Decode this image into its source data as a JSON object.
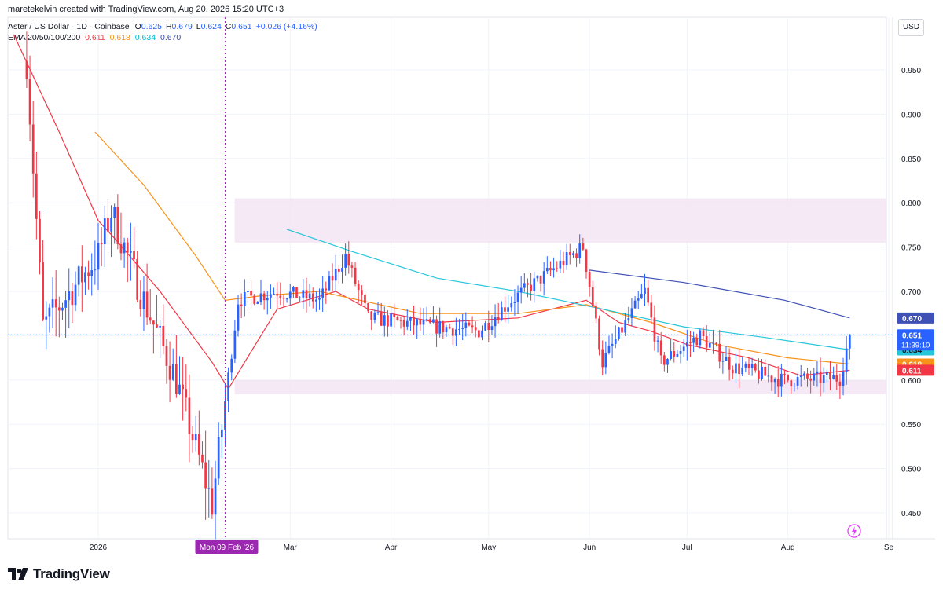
{
  "header": {
    "credit": "maretekelvin created with TradingView.com, Aug 20, 2026 15:20 UTC+3",
    "symbol": "Aster / US Dollar · 1D · Coinbase",
    "open_label": "O",
    "open": "0.625",
    "high_label": "H",
    "high": "0.679",
    "low_label": "L",
    "low": "0.624",
    "close_label": "C",
    "close": "0.651",
    "change": "+0.026 (+4.16%)",
    "ema_label": "EMA 20/50/100/200",
    "ema20": "0.611",
    "ema50": "0.618",
    "ema100": "0.634",
    "ema200": "0.670"
  },
  "axis": {
    "currency": "USD"
  },
  "footer": {
    "brand": "TradingView"
  },
  "crosshair_label": "Mon 09 Feb '26",
  "countdown": "11:39:10",
  "colors": {
    "up": "#2962ff",
    "down": "#f23645",
    "ema20": "#f23645",
    "ema50": "#f7931a",
    "ema100": "#26c6da",
    "ema200": "#3f51b5",
    "zone": "#f3e5f5",
    "crosshair": "#9c27b0"
  },
  "chart_data": {
    "type": "candlestick",
    "x_unit": "date",
    "y_range": [
      0.42,
      0.99
    ],
    "y_ticks": [
      "0.950",
      "0.900",
      "0.850",
      "0.800",
      "0.750",
      "0.700",
      "0.650",
      "0.600",
      "0.550",
      "0.500",
      "0.450"
    ],
    "x_ticks": [
      {
        "label": "2026",
        "date": "2026-01-01"
      },
      {
        "label": "Mar",
        "date": "2026-03-01"
      },
      {
        "label": "Apr",
        "date": "2026-04-01"
      },
      {
        "label": "May",
        "date": "2026-05-01"
      },
      {
        "label": "Jun",
        "date": "2026-06-01"
      },
      {
        "label": "Jul",
        "date": "2026-07-01"
      },
      {
        "label": "Aug",
        "date": "2026-08-01"
      },
      {
        "label": "Se",
        "date": "2026-09-01"
      }
    ],
    "zones": [
      {
        "name": "resistance",
        "from_date": "2026-02-10",
        "to_date": "2026-09-01",
        "low": 0.755,
        "high": 0.805
      },
      {
        "name": "support",
        "from_date": "2026-02-10",
        "to_date": "2026-09-01",
        "low": 0.584,
        "high": 0.6
      }
    ],
    "crosshair_date": "2026-02-09",
    "last_price": 0.651,
    "ema_levels": [
      {
        "name": "EMA 200",
        "value": 0.67,
        "color": "#3f51b5"
      },
      {
        "name": "EMA 100",
        "value": 0.634,
        "color": "#26c6da"
      },
      {
        "name": "EMA 50",
        "value": 0.618,
        "color": "#f7931a"
      },
      {
        "name": "EMA 20",
        "value": 0.611,
        "color": "#f23645"
      }
    ],
    "key_points": [
      {
        "date": "2025-12-10",
        "close": 0.96
      },
      {
        "date": "2025-12-15",
        "close": 0.66
      },
      {
        "date": "2026-01-01",
        "close": 0.74
      },
      {
        "date": "2026-01-05",
        "close": 0.79
      },
      {
        "date": "2026-01-15",
        "close": 0.69
      },
      {
        "date": "2026-01-25",
        "close": 0.6
      },
      {
        "date": "2026-02-05",
        "close": 0.46
      },
      {
        "date": "2026-02-13",
        "close": 0.69
      },
      {
        "date": "2026-02-25",
        "close": 0.7
      },
      {
        "date": "2026-03-10",
        "close": 0.69
      },
      {
        "date": "2026-03-18",
        "close": 0.74
      },
      {
        "date": "2026-03-25",
        "close": 0.67
      },
      {
        "date": "2026-04-15",
        "close": 0.66
      },
      {
        "date": "2026-04-28",
        "close": 0.655
      },
      {
        "date": "2026-05-08",
        "close": 0.69
      },
      {
        "date": "2026-05-30",
        "close": 0.75
      },
      {
        "date": "2026-06-05",
        "close": 0.62
      },
      {
        "date": "2026-06-18",
        "close": 0.7
      },
      {
        "date": "2026-06-23",
        "close": 0.62
      },
      {
        "date": "2026-07-05",
        "close": 0.65
      },
      {
        "date": "2026-07-15",
        "close": 0.615
      },
      {
        "date": "2026-07-30",
        "close": 0.6
      },
      {
        "date": "2026-08-17",
        "close": 0.602
      },
      {
        "date": "2026-08-20",
        "close": 0.651
      }
    ],
    "ema_lines": [
      {
        "name": "EMA 20",
        "color": "#f23645",
        "points": [
          [
            "2025-12-06",
            0.99
          ],
          [
            "2025-12-20",
            0.88
          ],
          [
            "2026-01-01",
            0.78
          ],
          [
            "2026-01-06",
            0.76
          ],
          [
            "2026-01-20",
            0.7
          ],
          [
            "2026-02-05",
            0.62
          ],
          [
            "2026-02-10",
            0.59
          ],
          [
            "2026-02-15",
            0.62
          ],
          [
            "2026-02-25",
            0.68
          ],
          [
            "2026-03-15",
            0.7
          ],
          [
            "2026-03-25",
            0.68
          ],
          [
            "2026-04-15",
            0.665
          ],
          [
            "2026-05-10",
            0.67
          ],
          [
            "2026-05-31",
            0.69
          ],
          [
            "2026-06-10",
            0.665
          ],
          [
            "2026-06-20",
            0.655
          ],
          [
            "2026-07-01",
            0.64
          ],
          [
            "2026-07-20",
            0.625
          ],
          [
            "2026-08-05",
            0.605
          ],
          [
            "2026-08-20",
            0.611
          ]
        ]
      },
      {
        "name": "EMA 50",
        "color": "#f7931a",
        "points": [
          [
            "2025-12-31",
            0.88
          ],
          [
            "2026-01-15",
            0.82
          ],
          [
            "2026-01-31",
            0.74
          ],
          [
            "2026-02-09",
            0.69
          ],
          [
            "2026-02-20",
            0.695
          ],
          [
            "2026-03-10",
            0.7
          ],
          [
            "2026-04-10",
            0.675
          ],
          [
            "2026-05-10",
            0.675
          ],
          [
            "2026-05-31",
            0.685
          ],
          [
            "2026-06-20",
            0.665
          ],
          [
            "2026-07-10",
            0.64
          ],
          [
            "2026-08-01",
            0.625
          ],
          [
            "2026-08-20",
            0.618
          ]
        ]
      },
      {
        "name": "EMA 100",
        "color": "#26c6da",
        "points": [
          [
            "2026-02-28",
            0.77
          ],
          [
            "2026-03-20",
            0.745
          ],
          [
            "2026-04-15",
            0.715
          ],
          [
            "2026-05-10",
            0.7
          ],
          [
            "2026-06-05",
            0.68
          ],
          [
            "2026-06-30",
            0.66
          ],
          [
            "2026-07-25",
            0.648
          ],
          [
            "2026-08-20",
            0.634
          ]
        ]
      },
      {
        "name": "EMA 200",
        "color": "#3f51b5",
        "points": [
          [
            "2026-06-01",
            0.724
          ],
          [
            "2026-06-30",
            0.71
          ],
          [
            "2026-07-31",
            0.69
          ],
          [
            "2026-08-20",
            0.67
          ]
        ]
      }
    ]
  }
}
